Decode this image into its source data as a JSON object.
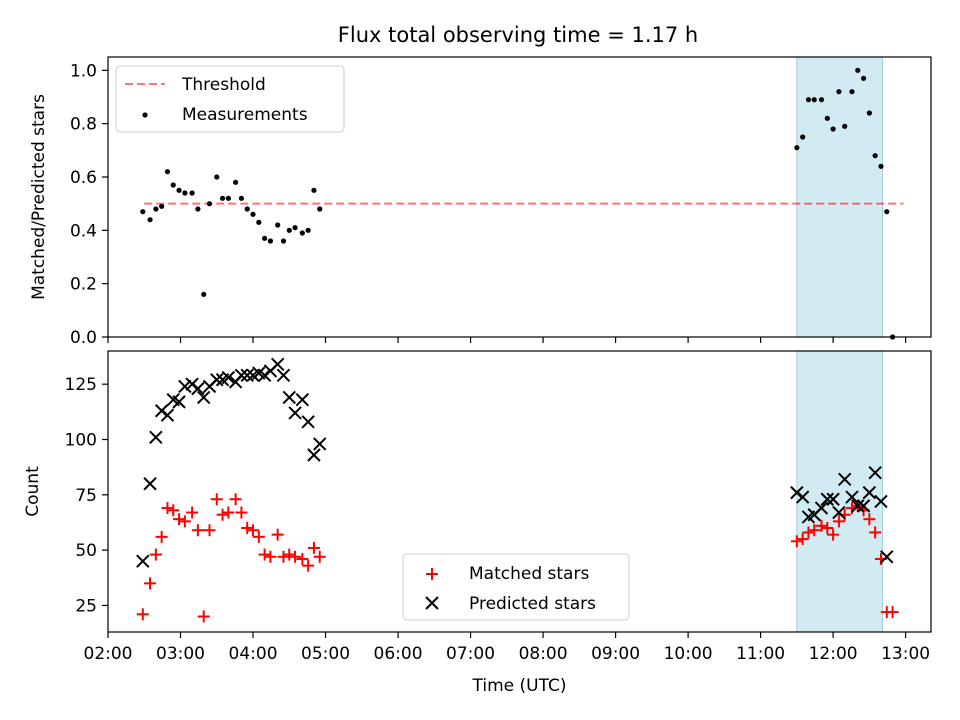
{
  "chart_data": [
    {
      "type": "scatter",
      "title": "Flux total observing time = 1.17 h",
      "xlabel": "",
      "ylabel": "Matched/Predicted stars",
      "xlim": [
        2.0,
        13.35
      ],
      "ylim": [
        0.0,
        1.05
      ],
      "yticks": [
        0.0,
        0.2,
        0.4,
        0.6,
        0.8,
        1.0
      ],
      "ytick_labels": [
        "0.0",
        "0.2",
        "0.4",
        "0.6",
        "0.8",
        "1.0"
      ],
      "grid": false,
      "legend_position": "top-left",
      "shaded_region": {
        "x_start": 11.5,
        "x_end": 12.68,
        "color": "#add8e6"
      },
      "threshold": {
        "name": "Threshold",
        "y": 0.5,
        "x_start": 2.5,
        "x_end": 12.97,
        "color": "#ff0000"
      },
      "series": [
        {
          "name": "Measurements",
          "marker": "dot",
          "color": "#000000",
          "x": [
            2.48,
            2.58,
            2.66,
            2.74,
            2.82,
            2.9,
            2.98,
            3.06,
            3.16,
            3.24,
            3.32,
            3.4,
            3.5,
            3.58,
            3.66,
            3.76,
            3.84,
            3.92,
            4.0,
            4.08,
            4.16,
            4.24,
            4.34,
            4.42,
            4.5,
            4.58,
            4.68,
            4.76,
            4.84,
            4.92,
            11.5,
            11.58,
            11.66,
            11.74,
            11.84,
            11.92,
            12.0,
            12.08,
            12.16,
            12.26,
            12.34,
            12.42,
            12.5,
            12.58,
            12.66,
            12.74,
            12.82
          ],
          "y": [
            0.47,
            0.44,
            0.48,
            0.49,
            0.62,
            0.57,
            0.55,
            0.54,
            0.54,
            0.48,
            0.16,
            0.5,
            0.6,
            0.52,
            0.52,
            0.58,
            0.52,
            0.48,
            0.46,
            0.43,
            0.37,
            0.36,
            0.42,
            0.36,
            0.4,
            0.41,
            0.39,
            0.4,
            0.55,
            0.48,
            0.71,
            0.75,
            0.89,
            0.89,
            0.89,
            0.82,
            0.78,
            0.92,
            0.79,
            0.92,
            1.0,
            0.97,
            0.84,
            0.68,
            0.64,
            0.47,
            0.0
          ]
        }
      ]
    },
    {
      "type": "scatter",
      "title": "",
      "xlabel": "Time (UTC)",
      "ylabel": "Count",
      "xlim": [
        2.0,
        13.35
      ],
      "ylim": [
        13,
        140
      ],
      "yticks": [
        25,
        50,
        75,
        100,
        125
      ],
      "ytick_labels": [
        "25",
        "50",
        "75",
        "100",
        "125"
      ],
      "xticks": [
        2,
        3,
        4,
        5,
        6,
        7,
        8,
        9,
        10,
        11,
        12,
        13
      ],
      "xtick_labels": [
        "02:00",
        "03:00",
        "04:00",
        "05:00",
        "06:00",
        "07:00",
        "08:00",
        "09:00",
        "10:00",
        "11:00",
        "12:00",
        "13:00"
      ],
      "grid": false,
      "legend_position": "bottom-center",
      "shaded_region": {
        "x_start": 11.5,
        "x_end": 12.68,
        "color": "#add8e6"
      },
      "series": [
        {
          "name": "Matched stars",
          "marker": "plus",
          "color": "#ff0000",
          "x": [
            2.48,
            2.58,
            2.66,
            2.74,
            2.82,
            2.9,
            2.98,
            3.06,
            3.16,
            3.24,
            3.32,
            3.4,
            3.5,
            3.58,
            3.66,
            3.76,
            3.84,
            3.92,
            4.0,
            4.08,
            4.16,
            4.24,
            4.34,
            4.42,
            4.5,
            4.58,
            4.68,
            4.76,
            4.84,
            4.92,
            11.5,
            11.58,
            11.66,
            11.74,
            11.84,
            11.92,
            12.0,
            12.08,
            12.16,
            12.26,
            12.34,
            12.42,
            12.5,
            12.58,
            12.66,
            12.74,
            12.82
          ],
          "y": [
            21,
            35,
            48,
            56,
            69,
            68,
            64,
            63,
            67,
            59,
            20,
            59,
            73,
            66,
            67,
            73,
            67,
            60,
            59,
            56,
            48,
            47,
            57,
            47,
            48,
            47,
            46,
            43,
            51,
            47,
            54,
            55,
            58,
            59,
            61,
            60,
            57,
            63,
            66,
            69,
            70,
            68,
            64,
            58,
            46,
            22,
            22
          ]
        },
        {
          "name": "Predicted stars",
          "marker": "cross",
          "color": "#000000",
          "x": [
            2.48,
            2.58,
            2.66,
            2.74,
            2.82,
            2.9,
            2.98,
            3.06,
            3.16,
            3.24,
            3.32,
            3.4,
            3.5,
            3.58,
            3.66,
            3.76,
            3.84,
            3.92,
            4.0,
            4.08,
            4.16,
            4.24,
            4.34,
            4.42,
            4.5,
            4.58,
            4.68,
            4.76,
            4.84,
            4.92,
            11.5,
            11.58,
            11.66,
            11.74,
            11.84,
            11.92,
            12.0,
            12.08,
            12.16,
            12.26,
            12.34,
            12.42,
            12.5,
            12.58,
            12.66,
            12.74
          ],
          "y": [
            45,
            80,
            101,
            113,
            111,
            118,
            117,
            124,
            125,
            123,
            119,
            124,
            127,
            127,
            128,
            126,
            129,
            129,
            129,
            130,
            129,
            131,
            134,
            129,
            119,
            112,
            118,
            108,
            93,
            98,
            76,
            74,
            65,
            66,
            69,
            73,
            73,
            67,
            82,
            74,
            70,
            70,
            76,
            85,
            72,
            47
          ]
        }
      ]
    }
  ]
}
